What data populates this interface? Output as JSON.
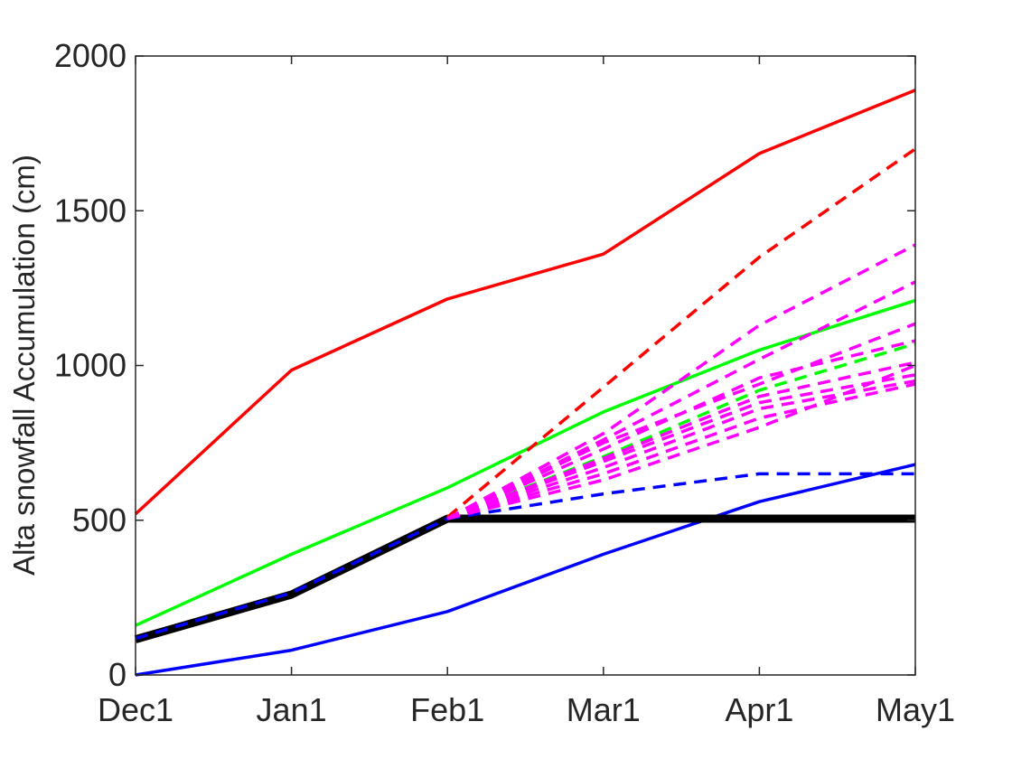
{
  "chart_data": {
    "type": "line",
    "title": "",
    "xlabel": "",
    "ylabel": "Alta snowfall Accumulation (cm)",
    "categories": [
      "Dec1",
      "Jan1",
      "Feb1",
      "Mar1",
      "Apr1",
      "May1"
    ],
    "ylim": [
      0,
      2000
    ],
    "yticks": [
      0,
      500,
      1000,
      1500,
      2000
    ],
    "grid": false,
    "legend": "none",
    "series": [
      {
        "color": "#ff0000",
        "style": "solid",
        "values": [
          520,
          985,
          1215,
          1360,
          1685,
          1890
        ]
      },
      {
        "color": "#00ff00",
        "style": "solid",
        "values": [
          160,
          390,
          605,
          850,
          1050,
          1210
        ]
      },
      {
        "color": "#0000ff",
        "style": "solid",
        "values": [
          0,
          80,
          205,
          390,
          560,
          680
        ]
      },
      {
        "color": "#000000",
        "style": "thick",
        "values": [
          115,
          260,
          505,
          505,
          505,
          505
        ]
      },
      {
        "color": "#0000ff",
        "style": "dashed",
        "values": [
          118,
          265,
          505,
          null,
          null,
          null
        ]
      },
      {
        "color": "#ff0000",
        "style": "dashed",
        "values": [
          null,
          null,
          510,
          930,
          1350,
          1700
        ]
      },
      {
        "color": "#00ff00",
        "style": "dashed",
        "values": [
          null,
          null,
          505,
          705,
          920,
          1070
        ]
      },
      {
        "color": "#0000ff",
        "style": "dashed",
        "values": [
          null,
          null,
          505,
          585,
          650,
          650
        ]
      },
      {
        "color": "#ff00ff",
        "style": "dashed",
        "values": [
          null,
          null,
          505,
          780,
          1130,
          1390
        ]
      },
      {
        "color": "#ff00ff",
        "style": "dashed",
        "values": [
          null,
          null,
          505,
          760,
          1020,
          1270
        ]
      },
      {
        "color": "#ff00ff",
        "style": "dashed",
        "values": [
          null,
          null,
          505,
          750,
          940,
          1135
        ]
      },
      {
        "color": "#ff00ff",
        "style": "dashed",
        "values": [
          null,
          null,
          505,
          730,
          960,
          1080
        ]
      },
      {
        "color": "#ff00ff",
        "style": "dashed",
        "values": [
          null,
          null,
          505,
          700,
          900,
          1010
        ]
      },
      {
        "color": "#ff00ff",
        "style": "dashed",
        "values": [
          null,
          null,
          505,
          690,
          880,
          970
        ]
      },
      {
        "color": "#ff00ff",
        "style": "dashed",
        "values": [
          null,
          null,
          505,
          670,
          860,
          950
        ]
      },
      {
        "color": "#ff00ff",
        "style": "dashed",
        "values": [
          null,
          null,
          505,
          650,
          830,
          940
        ]
      },
      {
        "color": "#ff00ff",
        "style": "dashed",
        "values": [
          null,
          null,
          505,
          630,
          800,
          1000
        ]
      }
    ]
  }
}
